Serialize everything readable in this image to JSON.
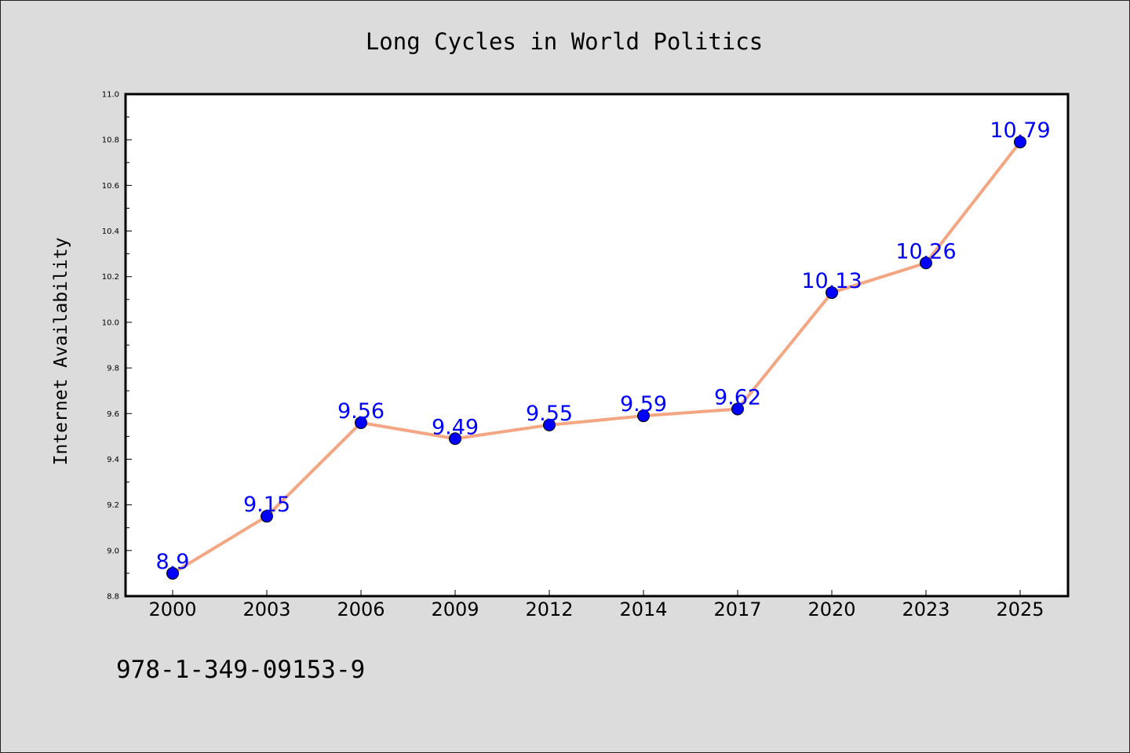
{
  "chart_data": {
    "type": "line",
    "title": "Long Cycles in World Politics",
    "xlabel": "",
    "ylabel": "Internet Availability",
    "categories": [
      "2000",
      "2003",
      "2006",
      "2009",
      "2012",
      "2014",
      "2017",
      "2020",
      "2023",
      "2025"
    ],
    "series": [
      {
        "values": [
          8.9,
          9.15,
          9.56,
          9.49,
          9.55,
          9.59,
          9.62,
          10.13,
          10.26,
          10.79
        ],
        "labels": [
          "8.9",
          "9.15",
          "9.56",
          "9.49",
          "9.55",
          "9.59",
          "9.62",
          "10.13",
          "10.26",
          "10.79"
        ],
        "line_color": "#f4a582",
        "marker_color": "#0000ff"
      }
    ],
    "ylim": [
      8.8,
      11.0
    ],
    "yticks": [
      "8.8",
      "9.0",
      "9.2",
      "9.4",
      "9.6",
      "9.8",
      "10.0",
      "10.2",
      "10.4",
      "10.6",
      "10.8",
      "11.0"
    ],
    "grid": false,
    "legend": "none",
    "data_label_color": "#0000ff",
    "background_color": "#dcdcdc",
    "plot_background_color": "#ffffff"
  },
  "footer": {
    "text": "978-1-349-09153-9"
  }
}
